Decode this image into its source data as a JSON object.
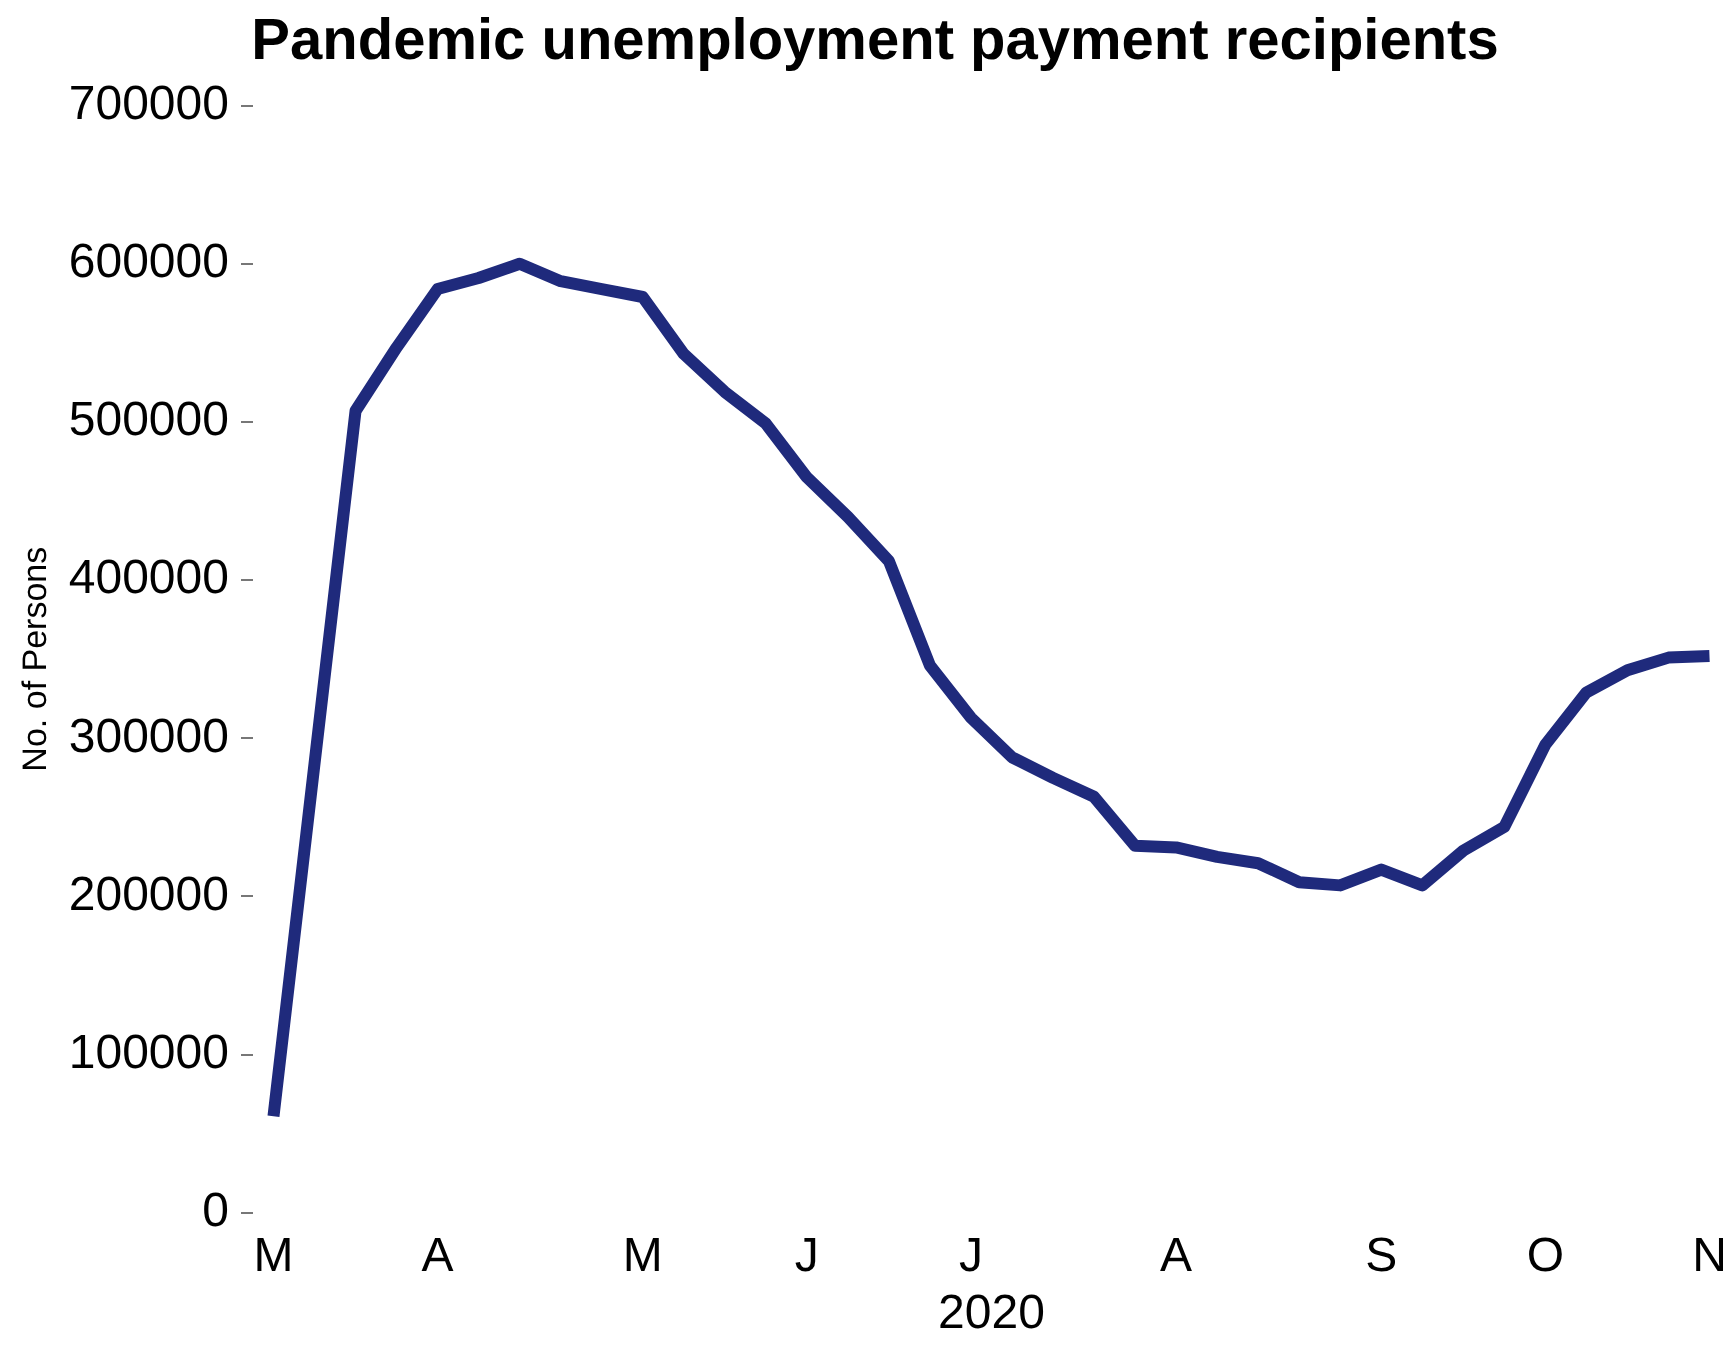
{
  "chart_data": {
    "type": "line",
    "title": "Pandemic unemployment payment recipients",
    "xlabel": "2020",
    "ylabel": "No. of Persons",
    "categories": [
      "M",
      null,
      null,
      null,
      "A",
      null,
      null,
      null,
      null,
      "M",
      null,
      null,
      null,
      "J",
      null,
      null,
      null,
      "J",
      null,
      null,
      null,
      null,
      "A",
      null,
      null,
      null,
      null,
      "S",
      null,
      null,
      null,
      "O",
      null,
      null,
      null,
      "N"
    ],
    "series": [
      {
        "color": "#1f2a7c",
        "values": [
          61000,
          284000,
          507000,
          547000,
          584000,
          591000,
          600000,
          589000,
          584000,
          579000,
          543000,
          519000,
          499000,
          465000,
          440000,
          412000,
          346000,
          313000,
          288000,
          275000,
          263000,
          232000,
          231000,
          225000,
          221000,
          209000,
          207000,
          217000,
          207000,
          229000,
          244000,
          296000,
          329000,
          343000,
          351000,
          352000
        ]
      }
    ],
    "ylim": [
      0,
      700000
    ],
    "yticks": [
      0,
      100000,
      200000,
      300000,
      400000,
      500000,
      600000,
      700000
    ],
    "grid": false,
    "legend": false,
    "marker": "none",
    "line_style": "solid"
  }
}
